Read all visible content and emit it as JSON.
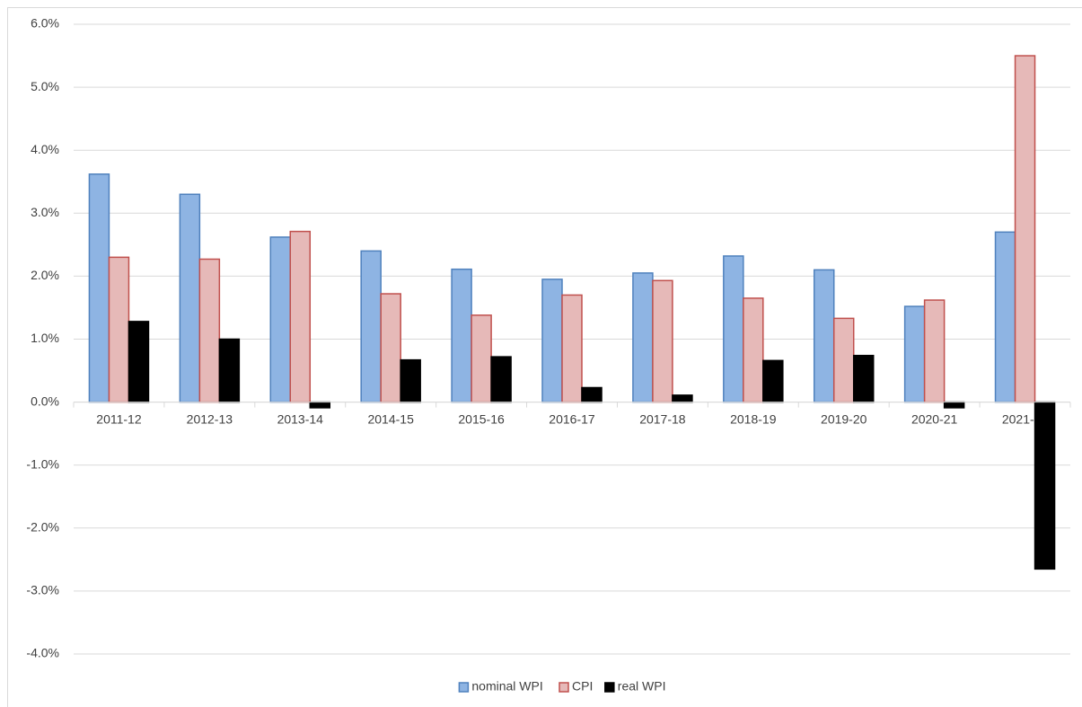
{
  "chart_data": {
    "type": "bar",
    "categories": [
      "2011-12",
      "2012-13",
      "2013-14",
      "2014-15",
      "2015-16",
      "2016-17",
      "2017-18",
      "2018-19",
      "2019-20",
      "2020-21",
      "2021-22"
    ],
    "series": [
      {
        "name": "nominal WPI",
        "color": "#8eb4e3",
        "edgecolor": "#4f81bd",
        "values": [
          3.62,
          3.3,
          2.62,
          2.4,
          2.11,
          1.95,
          2.05,
          2.32,
          2.1,
          1.52,
          2.7
        ]
      },
      {
        "name": "CPI",
        "color": "#e6b9b8",
        "edgecolor": "#c0504d",
        "values": [
          2.3,
          2.27,
          2.71,
          1.72,
          1.38,
          1.7,
          1.93,
          1.65,
          1.33,
          1.62,
          5.5
        ]
      },
      {
        "name": "real WPI",
        "color": "#000000",
        "edgecolor": "#000000",
        "values": [
          1.28,
          1.0,
          -0.09,
          0.67,
          0.72,
          0.23,
          0.11,
          0.66,
          0.74,
          -0.09,
          -2.65
        ]
      }
    ],
    "ylim": [
      -4,
      6
    ],
    "yticks": [
      {
        "value": -4,
        "label": "-4.0%"
      },
      {
        "value": -3,
        "label": "-3.0%"
      },
      {
        "value": -2,
        "label": "-2.0%"
      },
      {
        "value": -1,
        "label": "-1.0%"
      },
      {
        "value": 0,
        "label": "0.0%"
      },
      {
        "value": 1,
        "label": "1.0%"
      },
      {
        "value": 2,
        "label": "2.0%"
      },
      {
        "value": 3,
        "label": "3.0%"
      },
      {
        "value": 4,
        "label": "4.0%"
      },
      {
        "value": 5,
        "label": "5.0%"
      },
      {
        "value": 6,
        "label": "6.0%"
      }
    ],
    "grid": true,
    "legend": "bottom"
  }
}
